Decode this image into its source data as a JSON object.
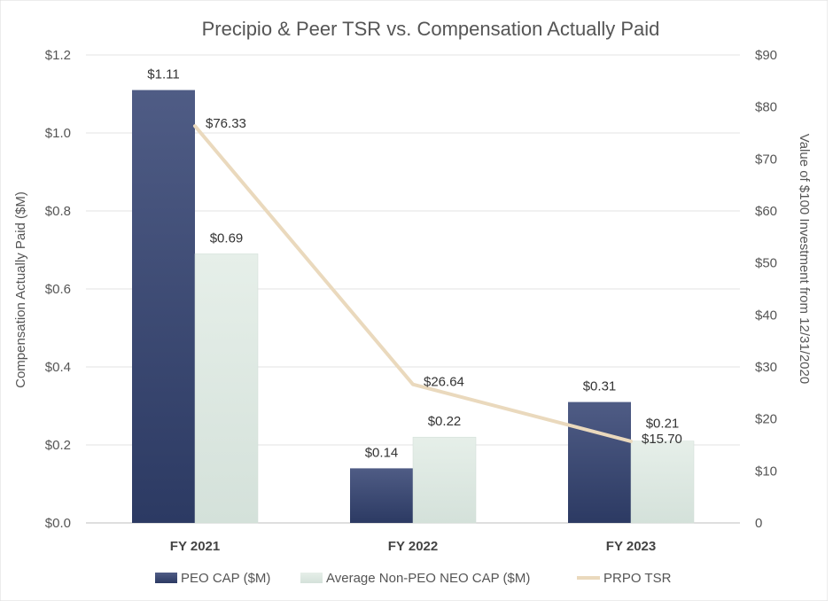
{
  "chart_data": {
    "type": "bar",
    "title": "Precipio & Peer TSR vs. Compensation Actually Paid",
    "categories": [
      "FY 2021",
      "FY 2022",
      "FY 2023"
    ],
    "ylabel": "Compensation Actually Paid ($M)",
    "y2label": "Value of $100 Investment from 12/31/2020",
    "ylim": [
      0,
      1.2
    ],
    "y_ticks": [
      "$0.0",
      "$0.2",
      "$0.4",
      "$0.6",
      "$0.8",
      "$1.0",
      "$1.2"
    ],
    "y_tick_values": [
      0,
      0.2,
      0.4,
      0.6,
      0.8,
      1.0,
      1.2
    ],
    "y2lim": [
      0,
      90
    ],
    "y2_ticks": [
      "0",
      "$10",
      "$20",
      "$30",
      "$40",
      "$50",
      "$60",
      "$70",
      "$80",
      "$90"
    ],
    "y2_tick_values": [
      0,
      10,
      20,
      30,
      40,
      50,
      60,
      70,
      80,
      90
    ],
    "grid": true,
    "legend_position": "bottom",
    "series": [
      {
        "name": "PEO CAP ($M)",
        "type": "bar",
        "axis": "left",
        "color": "#3b4a72",
        "values": [
          1.11,
          0.14,
          0.31
        ],
        "labels": [
          "$1.11",
          "$0.14",
          "$0.31"
        ]
      },
      {
        "name": "Average Non-PEO NEO CAP ($M)",
        "type": "bar",
        "axis": "left",
        "color": "#dde8e2",
        "values": [
          0.69,
          0.22,
          0.21
        ],
        "labels": [
          "$0.69",
          "$0.22",
          "$0.21"
        ]
      },
      {
        "name": "PRPO TSR",
        "type": "line",
        "axis": "right",
        "color": "#ead9bd",
        "values": [
          76.33,
          26.64,
          15.7
        ],
        "labels": [
          "$76.33",
          "$26.64",
          "$15.70"
        ]
      }
    ]
  }
}
